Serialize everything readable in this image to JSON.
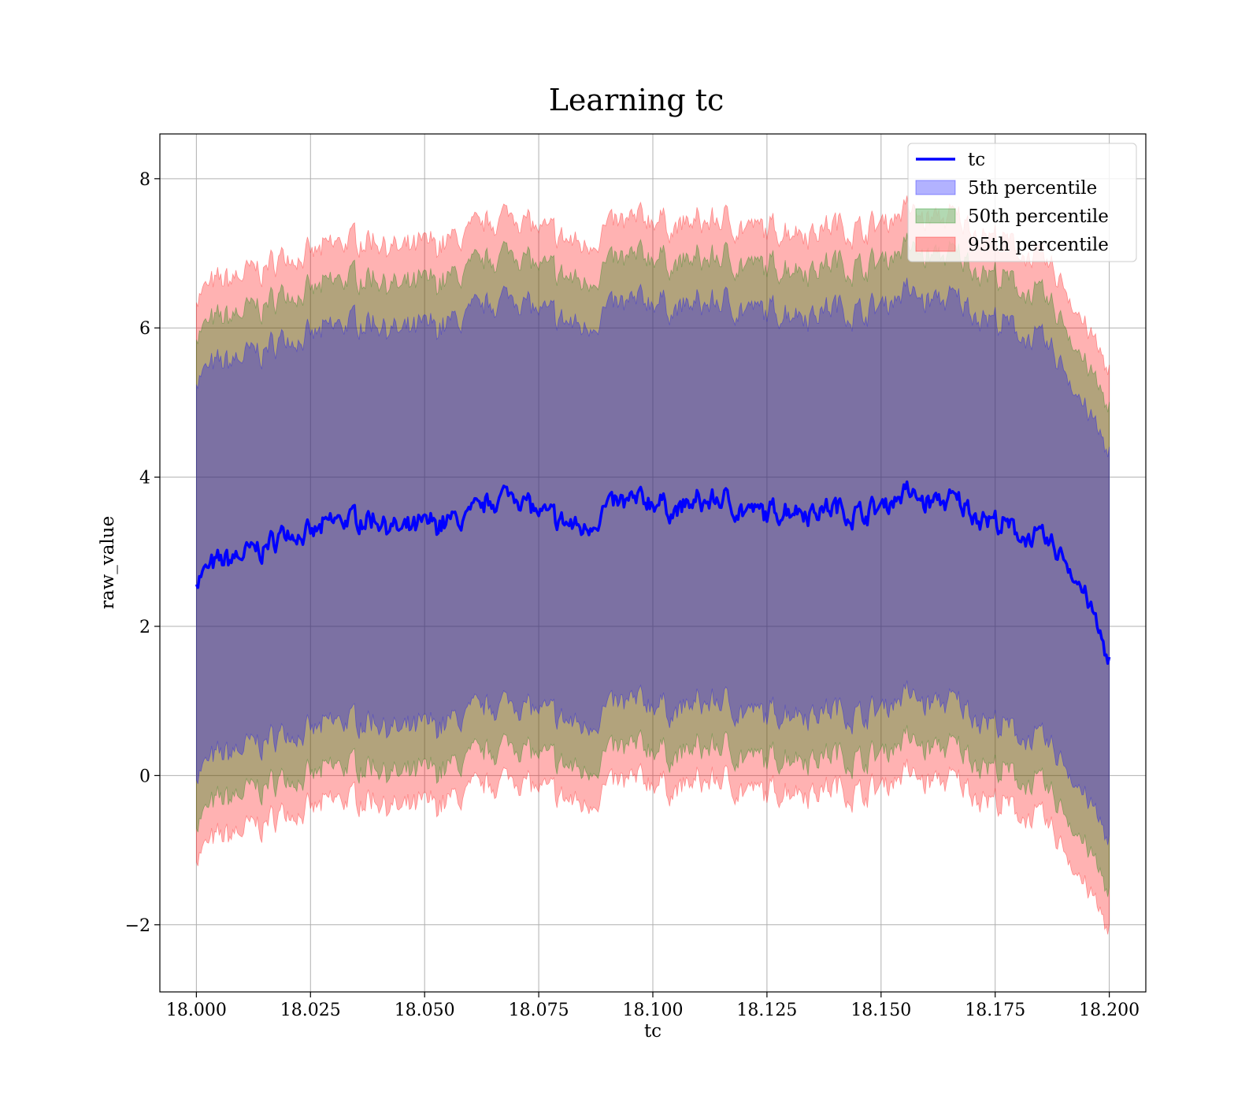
{
  "chart_data": {
    "type": "line",
    "title": "Learning tc",
    "xlabel": "tc",
    "ylabel": "raw_value",
    "xlim": [
      17.992,
      18.208
    ],
    "ylim": [
      -2.9,
      8.6
    ],
    "x_ticks": [
      18.0,
      18.025,
      18.05,
      18.075,
      18.1,
      18.125,
      18.15,
      18.175,
      18.2
    ],
    "x_tick_labels": [
      "18.000",
      "18.025",
      "18.050",
      "18.075",
      "18.100",
      "18.125",
      "18.150",
      "18.175",
      "18.200"
    ],
    "y_ticks": [
      -2,
      0,
      2,
      4,
      6,
      8
    ],
    "y_tick_labels": [
      "−2",
      "0",
      "2",
      "4",
      "6",
      "8"
    ],
    "grid": true,
    "legend_position": "top-right",
    "x": [
      18.0,
      18.005,
      18.01,
      18.015,
      18.02,
      18.025,
      18.03,
      18.035,
      18.04,
      18.045,
      18.05,
      18.055,
      18.06,
      18.065,
      18.07,
      18.075,
      18.08,
      18.085,
      18.09,
      18.095,
      18.1,
      18.105,
      18.11,
      18.115,
      18.12,
      18.125,
      18.13,
      18.135,
      18.14,
      18.145,
      18.15,
      18.155,
      18.16,
      18.165,
      18.17,
      18.175,
      18.18,
      18.185,
      18.19,
      18.195,
      18.2
    ],
    "series": [
      {
        "name": "tc",
        "kind": "line",
        "color": "#0000ff",
        "values": [
          2.65,
          2.85,
          2.95,
          3.05,
          3.3,
          3.2,
          3.4,
          3.45,
          3.45,
          3.25,
          3.35,
          3.4,
          3.45,
          3.7,
          3.8,
          3.5,
          3.4,
          3.3,
          3.6,
          3.65,
          3.7,
          3.55,
          3.65,
          3.7,
          3.55,
          3.5,
          3.6,
          3.55,
          3.6,
          3.5,
          3.6,
          3.8,
          3.65,
          3.7,
          3.55,
          3.4,
          3.25,
          3.15,
          2.95,
          2.4,
          1.5
        ]
      },
      {
        "name": "5th percentile",
        "kind": "band",
        "color": "#0000ff",
        "lower": [
          0.05,
          0.25,
          0.35,
          0.45,
          0.6,
          0.55,
          0.7,
          0.75,
          0.75,
          0.55,
          0.65,
          0.7,
          0.8,
          0.95,
          1.0,
          0.85,
          0.75,
          0.65,
          0.9,
          0.95,
          1.0,
          0.85,
          0.95,
          1.0,
          0.85,
          0.8,
          0.9,
          0.85,
          0.9,
          0.8,
          0.9,
          1.1,
          0.95,
          1.0,
          0.85,
          0.7,
          0.55,
          0.45,
          0.2,
          -0.3,
          -0.9
        ],
        "upper": [
          5.35,
          5.5,
          5.6,
          5.7,
          5.9,
          5.85,
          6.0,
          6.1,
          6.1,
          5.9,
          6.0,
          6.05,
          6.15,
          6.35,
          6.45,
          6.2,
          6.1,
          6.0,
          6.25,
          6.3,
          6.4,
          6.25,
          6.3,
          6.35,
          6.25,
          6.2,
          6.25,
          6.2,
          6.3,
          6.2,
          6.3,
          6.5,
          6.35,
          6.4,
          6.25,
          6.1,
          5.95,
          5.8,
          5.5,
          4.9,
          4.3
        ]
      },
      {
        "name": "50th percentile",
        "kind": "band",
        "color": "#008000",
        "lower": [
          -0.6,
          -0.35,
          -0.25,
          -0.15,
          0.0,
          -0.05,
          0.1,
          0.15,
          0.15,
          -0.05,
          0.05,
          0.1,
          0.2,
          0.35,
          0.45,
          0.25,
          0.15,
          0.05,
          0.3,
          0.35,
          0.4,
          0.25,
          0.35,
          0.4,
          0.25,
          0.2,
          0.3,
          0.25,
          0.3,
          0.2,
          0.3,
          0.5,
          0.35,
          0.4,
          0.25,
          0.1,
          -0.05,
          -0.15,
          -0.45,
          -0.95,
          -1.6
        ],
        "upper": [
          5.95,
          6.1,
          6.2,
          6.3,
          6.5,
          6.45,
          6.6,
          6.7,
          6.7,
          6.5,
          6.6,
          6.65,
          6.75,
          6.95,
          7.05,
          6.8,
          6.7,
          6.6,
          6.85,
          6.9,
          7.0,
          6.85,
          6.9,
          6.95,
          6.85,
          6.8,
          6.85,
          6.8,
          6.9,
          6.8,
          6.9,
          7.1,
          6.95,
          7.0,
          6.85,
          6.7,
          6.55,
          6.4,
          6.1,
          5.5,
          4.9
        ]
      },
      {
        "name": "95th percentile",
        "kind": "band",
        "color": "#ff0000",
        "lower": [
          -1.05,
          -0.85,
          -0.75,
          -0.65,
          -0.45,
          -0.5,
          -0.35,
          -0.3,
          -0.3,
          -0.5,
          -0.4,
          -0.35,
          -0.25,
          -0.1,
          0.0,
          -0.2,
          -0.3,
          -0.4,
          -0.15,
          -0.1,
          -0.05,
          -0.2,
          -0.1,
          -0.05,
          -0.2,
          -0.25,
          -0.15,
          -0.2,
          -0.15,
          -0.25,
          -0.15,
          0.05,
          -0.1,
          -0.05,
          -0.2,
          -0.35,
          -0.5,
          -0.6,
          -0.95,
          -1.5,
          -2.1
        ],
        "upper": [
          6.45,
          6.6,
          6.7,
          6.8,
          7.0,
          6.95,
          7.1,
          7.2,
          7.2,
          7.0,
          7.1,
          7.15,
          7.25,
          7.45,
          7.55,
          7.3,
          7.2,
          7.1,
          7.35,
          7.4,
          7.5,
          7.35,
          7.4,
          7.45,
          7.35,
          7.3,
          7.35,
          7.3,
          7.4,
          7.3,
          7.4,
          7.6,
          7.45,
          7.5,
          7.35,
          7.2,
          7.05,
          6.9,
          6.6,
          6.0,
          5.4
        ]
      }
    ]
  }
}
